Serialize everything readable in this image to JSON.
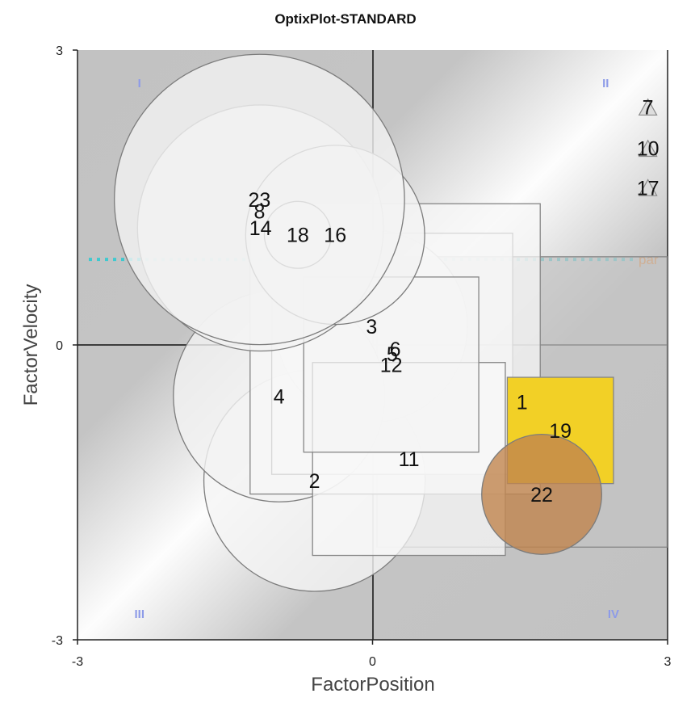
{
  "chart_data": {
    "type": "scatter",
    "title": "OptixPlot-STANDARD",
    "xlabel": "FactorPosition",
    "ylabel": "FactorVelocity",
    "xlim": [
      -3,
      3
    ],
    "ylim": [
      -3,
      3
    ],
    "xticks": [
      "-3",
      "0",
      "3"
    ],
    "yticks": [
      "3",
      "0",
      "-3"
    ],
    "grid": false,
    "quadrant_labels": [
      {
        "text": "I",
        "x": -2.37,
        "y": 2.62
      },
      {
        "text": "II",
        "x": 2.37,
        "y": 2.62
      },
      {
        "text": "III",
        "x": -2.37,
        "y": -2.78
      },
      {
        "text": "IV",
        "x": 2.45,
        "y": -2.78
      }
    ],
    "reference_line": {
      "label": "par",
      "y": 0.87,
      "color": "#3fc9cf"
    },
    "points": [
      {
        "label": "1",
        "x": 1.52,
        "y": -0.58,
        "shape": "square",
        "size": 2.95,
        "fill": "#c4c4c4",
        "label_color": "#ffffff"
      },
      {
        "label": "2",
        "x": -0.59,
        "y": -1.38,
        "shape": "circle",
        "size": 2.25,
        "fill": "#f5f5f5"
      },
      {
        "label": "3",
        "x": -0.01,
        "y": 0.19,
        "shape": "circle",
        "size": 1.95,
        "fill": "#f3f3f3"
      },
      {
        "label": "4",
        "x": -0.95,
        "y": -0.52,
        "shape": "circle",
        "size": 2.15,
        "fill": "#f3f3f3"
      },
      {
        "label": "5",
        "x": 0.2,
        "y": -0.09,
        "shape": "square",
        "size": 2.45,
        "fill": "#f6f6f6"
      },
      {
        "label": "6",
        "x": 0.23,
        "y": -0.04,
        "shape": "square",
        "size": 2.95,
        "fill": "#f6f6f6"
      },
      {
        "label": "7",
        "x": 2.8,
        "y": 2.42,
        "shape": "triangle",
        "size": 0.18,
        "fill": "#dddddd"
      },
      {
        "label": "8",
        "x": -1.15,
        "y": 1.36,
        "shape": "square",
        "size": 0.2,
        "fill": "#dddddd"
      },
      {
        "label": "10",
        "x": 2.8,
        "y": 2.0,
        "shape": "triangle",
        "size": 0.18,
        "fill": "#dddddd"
      },
      {
        "label": "11",
        "x": 0.37,
        "y": -1.16,
        "shape": "square",
        "size": 1.96,
        "fill": "#f8f8f8"
      },
      {
        "label": "12",
        "x": 0.19,
        "y": -0.2,
        "shape": "square",
        "size": 1.78,
        "fill": "#f4f4f4"
      },
      {
        "label": "14",
        "x": -1.14,
        "y": 1.19,
        "shape": "circle",
        "size": 2.5,
        "fill": "#f2f2f2"
      },
      {
        "label": "16",
        "x": -0.38,
        "y": 1.12,
        "shape": "circle",
        "size": 1.82,
        "fill": "#f2f2f2"
      },
      {
        "label": "17",
        "x": 2.8,
        "y": 1.6,
        "shape": "triangle",
        "size": 0.18,
        "fill": "#dddddd"
      },
      {
        "label": "18",
        "x": -0.76,
        "y": 1.12,
        "shape": "circle",
        "size": 0.68,
        "fill": "#f2f2f2"
      },
      {
        "label": "19",
        "x": 1.91,
        "y": -0.87,
        "shape": "square",
        "size": 1.08,
        "fill": "#f2d026"
      },
      {
        "label": "22",
        "x": 1.72,
        "y": -1.52,
        "shape": "circle",
        "size": 1.22,
        "fill": "#c1844e"
      },
      {
        "label": "23",
        "x": -1.15,
        "y": 1.48,
        "shape": "circle",
        "size": 2.95,
        "fill": "#f2f2f2"
      }
    ]
  }
}
